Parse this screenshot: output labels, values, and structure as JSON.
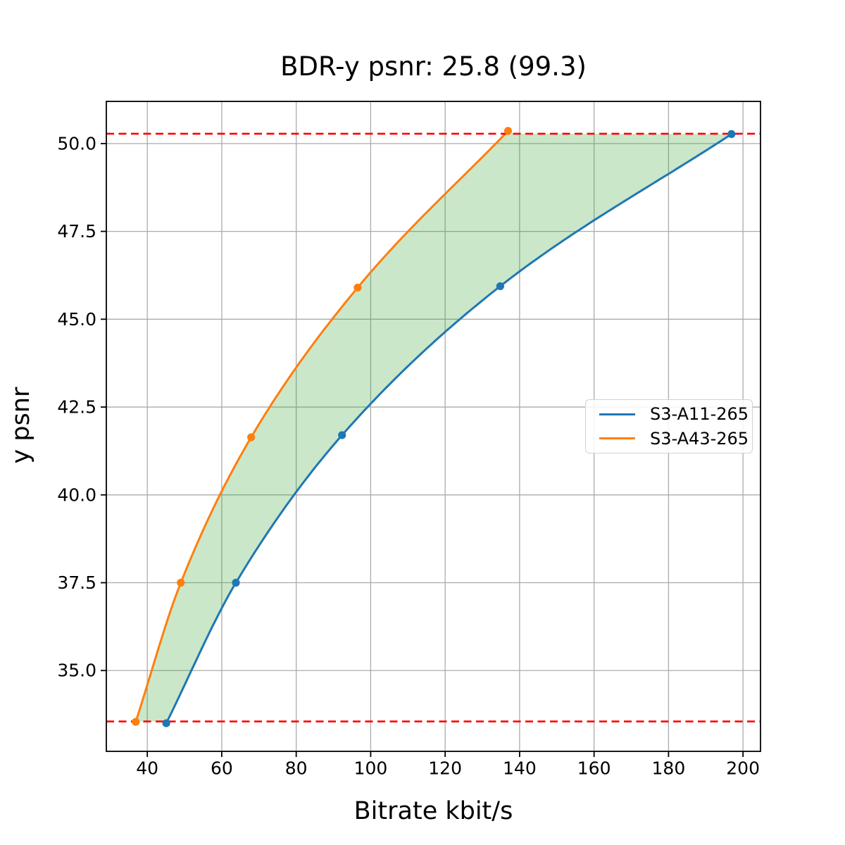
{
  "figure": {
    "title": "BDR-y psnr: 25.8 (99.3)",
    "xlabel": "Bitrate kbit/s",
    "ylabel": "y psnr"
  },
  "legend": {
    "items": [
      {
        "label": "S3-A11-265",
        "color": "#1f77b4"
      },
      {
        "label": "S3-A43-265",
        "color": "#ff7f0e"
      }
    ]
  },
  "chart_data": {
    "type": "line",
    "title": "BDR-y psnr: 25.8 (99.3)",
    "bd_rate_value": "25.8",
    "overlap_percent": "99.3",
    "xlabel": "Bitrate kbit/s",
    "ylabel": "y psnr",
    "xlim": [
      29.0,
      204.7
    ],
    "ylim": [
      32.7,
      51.2
    ],
    "xticks": [
      40,
      60,
      80,
      100,
      120,
      140,
      160,
      180,
      200
    ],
    "yticks": [
      35.0,
      37.5,
      40.0,
      42.5,
      45.0,
      47.5,
      50.0
    ],
    "grid": true,
    "grid_color": "#ababab",
    "legend_position": "center right",
    "series": [
      {
        "name": "S3-A11-265",
        "color": "#1f77b4",
        "marker": "circle",
        "x": [
          45.1,
          63.8,
          92.3,
          134.8,
          196.9
        ],
        "y": [
          33.5,
          37.5,
          41.7,
          45.94,
          50.27
        ]
      },
      {
        "name": "S3-A43-265",
        "color": "#ff7f0e",
        "marker": "circle",
        "x": [
          36.9,
          49.0,
          67.9,
          96.5,
          136.9
        ],
        "y": [
          33.54,
          37.5,
          41.64,
          45.9,
          50.36
        ]
      }
    ],
    "hlines": [
      {
        "y": 50.28,
        "color": "#ff0000",
        "linestyle": "dashed"
      },
      {
        "y": 33.55,
        "color": "#ff0000",
        "linestyle": "dashed"
      }
    ],
    "fill_between": {
      "between": [
        "S3-A43-265",
        "S3-A11-265"
      ],
      "y_range": [
        33.55,
        50.28
      ],
      "color": "rgba(44,160,44,0.25)"
    }
  }
}
